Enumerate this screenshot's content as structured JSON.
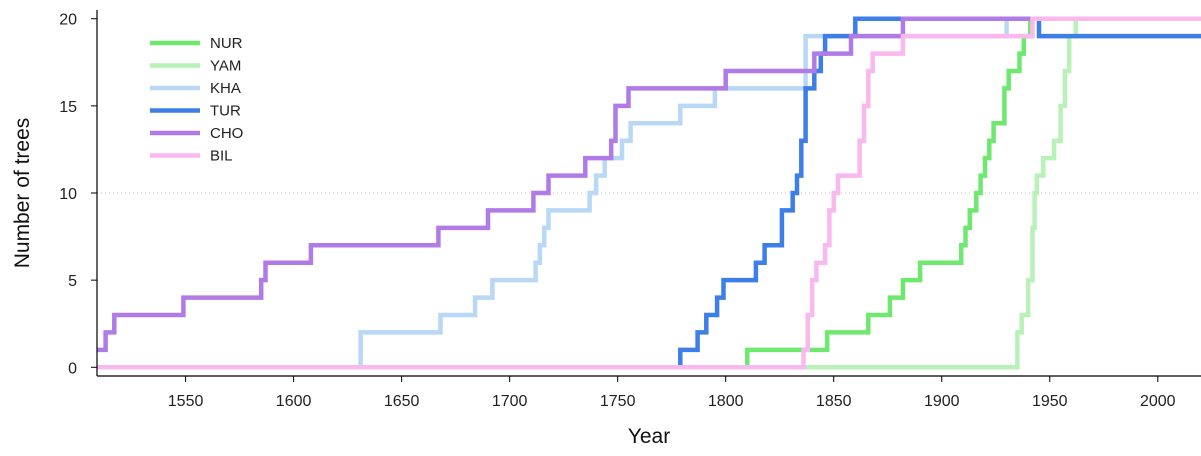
{
  "chart_data": {
    "type": "line",
    "title": "",
    "xlabel": "Year",
    "ylabel": "Number of trees",
    "xlim": [
      1509,
      2020
    ],
    "ylim": [
      -0.5,
      20.5
    ],
    "xticks": [
      1550,
      1600,
      1650,
      1700,
      1750,
      1800,
      1850,
      1900,
      1950,
      2000
    ],
    "yticks": [
      0,
      5,
      10,
      15,
      20
    ],
    "grid": "dotted horizontal line at y = 10",
    "legend_position": "top-left",
    "step": true,
    "series": [
      {
        "name": "NUR",
        "color": "#6ee86e",
        "x": [
          1509,
          1810,
          1812,
          1843,
          1847,
          1862,
          1866,
          1872,
          1876,
          1880,
          1882,
          1886,
          1890,
          1907,
          1909,
          1911,
          1913,
          1916,
          1918,
          1920,
          1922,
          1924,
          1927,
          1929,
          1931,
          1934,
          1936,
          1938,
          1941,
          1943,
          2020
        ],
        "y": [
          0,
          1,
          1,
          1,
          2,
          2,
          3,
          3,
          4,
          4,
          5,
          5,
          6,
          6,
          7,
          8,
          9,
          10,
          11,
          12,
          13,
          14,
          14,
          16,
          17,
          17,
          18,
          19,
          20,
          20,
          20
        ]
      },
      {
        "name": "YAM",
        "color": "#b8f2b8",
        "x": [
          1509,
          1933,
          1935,
          1937,
          1940,
          1942,
          1943,
          1944,
          1947,
          1950,
          1952,
          1955,
          1957,
          1959,
          1962,
          2020
        ],
        "y": [
          0,
          0,
          2,
          3,
          5,
          8,
          10,
          11,
          12,
          12,
          13,
          15,
          17,
          19,
          20,
          20
        ]
      },
      {
        "name": "KHA",
        "color": "#b8d8f6",
        "x": [
          1509,
          1629,
          1631,
          1664,
          1668,
          1679,
          1684,
          1688,
          1692,
          1700,
          1710,
          1712,
          1714,
          1716,
          1718,
          1721,
          1725,
          1733,
          1737,
          1740,
          1744,
          1748,
          1752,
          1756,
          1760,
          1764,
          1775,
          1779,
          1783,
          1791,
          1795,
          1806,
          1833,
          1837,
          1850,
          1930,
          2020
        ],
        "y": [
          0,
          0,
          2,
          2,
          3,
          3,
          4,
          4,
          5,
          5,
          5,
          6,
          7,
          8,
          9,
          9,
          9,
          9,
          10,
          11,
          12,
          12,
          13,
          14,
          14,
          14,
          14,
          15,
          15,
          15,
          16,
          16,
          16,
          19,
          19,
          20,
          20
        ]
      },
      {
        "name": "TUR",
        "color": "#3e7ee8",
        "x": [
          1509,
          1777,
          1779,
          1785,
          1787,
          1791,
          1793,
          1796,
          1799,
          1801,
          1808,
          1810,
          1814,
          1816,
          1818,
          1821,
          1823,
          1826,
          1828,
          1831,
          1833,
          1835,
          1837,
          1839,
          1841,
          1844,
          1846,
          1849,
          1852,
          1858,
          1860,
          1862,
          1886,
          1942,
          1945,
          2017,
          2020
        ],
        "y": [
          0,
          0,
          1,
          1,
          2,
          3,
          3,
          4,
          5,
          5,
          5,
          5,
          6,
          6,
          7,
          7,
          7,
          9,
          9,
          10,
          11,
          13,
          16,
          16,
          17,
          18,
          19,
          19,
          19,
          19,
          20,
          20,
          20,
          20,
          19,
          19,
          19
        ]
      },
      {
        "name": "CHO",
        "color": "#b07be6",
        "x": [
          1509,
          1511,
          1513,
          1517,
          1547,
          1549,
          1583,
          1585,
          1587,
          1606,
          1608,
          1665,
          1667,
          1688,
          1690,
          1706,
          1708,
          1711,
          1713,
          1718,
          1720,
          1733,
          1735,
          1745,
          1747,
          1749,
          1753,
          1755,
          1758,
          1798,
          1800,
          1824,
          1827,
          1830,
          1833,
          1837,
          1841,
          1854,
          1858,
          1880,
          1882,
          1940,
          2020
        ],
        "y": [
          1,
          1,
          2,
          3,
          3,
          4,
          4,
          5,
          6,
          6,
          7,
          7,
          8,
          8,
          9,
          9,
          9,
          10,
          10,
          11,
          11,
          11,
          12,
          12,
          13,
          15,
          15,
          16,
          16,
          16,
          17,
          17,
          17,
          17,
          17,
          17,
          18,
          18,
          19,
          19,
          20,
          20,
          20
        ]
      },
      {
        "name": "BIL",
        "color": "#f9b8ee",
        "x": [
          1509,
          1834,
          1836,
          1838,
          1840,
          1842,
          1846,
          1848,
          1850,
          1852,
          1854,
          1860,
          1862,
          1864,
          1866,
          1868,
          1870,
          1872,
          1880,
          1882,
          1940,
          1942,
          2020
        ],
        "y": [
          0,
          0,
          1,
          3,
          5,
          6,
          7,
          9,
          10,
          11,
          11,
          11,
          13,
          15,
          17,
          18,
          18,
          18,
          18,
          19,
          19,
          20,
          20
        ]
      }
    ]
  }
}
